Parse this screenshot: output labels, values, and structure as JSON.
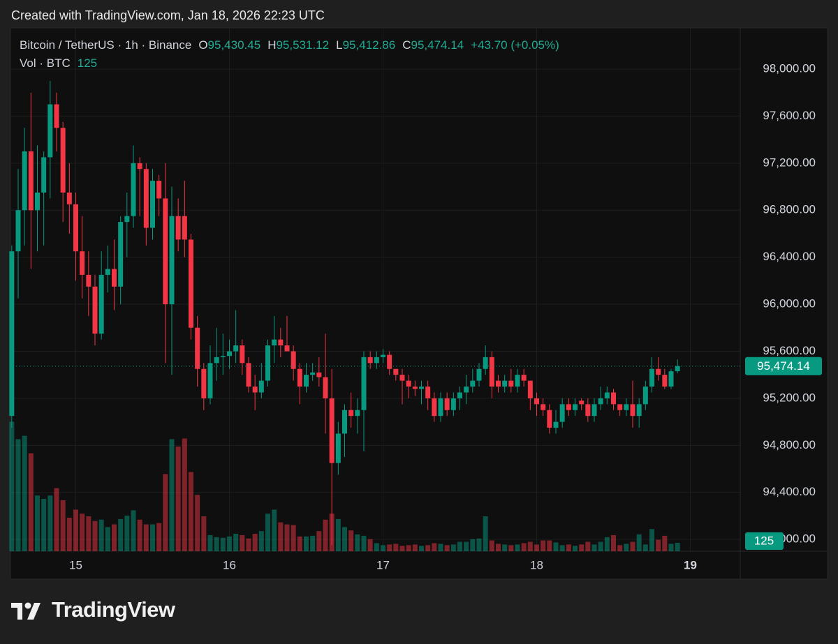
{
  "chart_data": {
    "type": "candlestick",
    "title": "Created with TradingView.com, Jan 18, 2026 22:23 UTC",
    "symbol": "Bitcoin / TetherUS · 1h · Binance",
    "ohlc_legend": [
      {
        "label": "O",
        "value": "95,430.45"
      },
      {
        "label": "H",
        "value": "95,531.12"
      },
      {
        "label": "L",
        "value": "95,412.86"
      },
      {
        "label": "C",
        "value": "95,474.14"
      }
    ],
    "change": "+43.70 (+0.05%)",
    "volume_title": "Vol · BTC",
    "up_color": "#089981",
    "down_color": "#f23645",
    "open": [
      95050,
      96450,
      96800,
      97300,
      96800,
      96950,
      97250,
      97700,
      97500,
      96950,
      96850,
      96450,
      96250,
      96150,
      95750,
      96250,
      96300,
      96150,
      96700,
      96750,
      97200,
      97150,
      96650,
      97050,
      96900,
      96000,
      96750,
      96750,
      96550,
      95800,
      95450,
      95200,
      95500,
      95550,
      95560,
      95600,
      95650,
      95500,
      95300,
      95250,
      95350,
      95650,
      95700,
      95650,
      95600,
      95450,
      95300,
      95400,
      95420,
      95380,
      95200,
      94650,
      94900,
      95100,
      95050,
      95100,
      95550,
      95500,
      95550,
      95570,
      95450,
      95400,
      95350,
      95300,
      95280,
      95300,
      95200,
      95050,
      95200,
      95100,
      95200,
      95250,
      95300,
      95350,
      95450,
      95550,
      95350,
      95300,
      95350,
      95300,
      95400,
      95350,
      95200,
      95150,
      95100,
      94950,
      95000,
      95150,
      95100,
      95180,
      95150,
      95050,
      95150,
      95200,
      95250,
      95150,
      95100,
      95150,
      95050,
      95150,
      95300,
      95450,
      95400,
      95300,
      95430.45
    ],
    "high": [
      96500,
      97150,
      97500,
      97800,
      97350,
      97300,
      97900,
      97800,
      97550,
      97200,
      96950,
      96750,
      96450,
      96250,
      96450,
      96500,
      96550,
      96750,
      96950,
      97350,
      97250,
      97200,
      97150,
      97100,
      97200,
      97000,
      96900,
      97050,
      96600,
      95900,
      95500,
      95650,
      95800,
      95750,
      95700,
      95950,
      95700,
      95550,
      95400,
      95500,
      95700,
      95900,
      95800,
      95900,
      95650,
      95500,
      95500,
      95500,
      95550,
      95750,
      95450,
      95000,
      95150,
      95250,
      95200,
      95600,
      95600,
      95600,
      95620,
      95600,
      95450,
      95450,
      95400,
      95350,
      95350,
      95350,
      95250,
      95250,
      95250,
      95250,
      95300,
      95400,
      95450,
      95500,
      95650,
      95600,
      95400,
      95400,
      95450,
      95450,
      95450,
      95350,
      95250,
      95200,
      95150,
      95100,
      95200,
      95200,
      95200,
      95200,
      95200,
      95200,
      95300,
      95300,
      95280,
      95150,
      95200,
      95350,
      95200,
      95350,
      95550,
      95550,
      95450,
      95450,
      95531.12
    ],
    "low": [
      94950,
      96050,
      96500,
      96300,
      96450,
      96500,
      96900,
      97300,
      96700,
      96600,
      96200,
      96050,
      95900,
      95650,
      95700,
      96100,
      95950,
      96000,
      96400,
      96650,
      96750,
      96500,
      96550,
      96750,
      95500,
      95400,
      96450,
      96400,
      95700,
      95300,
      95100,
      95150,
      95350,
      95400,
      95450,
      95500,
      95400,
      95250,
      95100,
      95200,
      95300,
      95500,
      95550,
      95600,
      95350,
      95150,
      95250,
      95350,
      95300,
      94900,
      93950,
      94550,
      94700,
      94950,
      94900,
      94750,
      95450,
      95450,
      95500,
      95400,
      95350,
      95150,
      95200,
      95220,
      95150,
      95100,
      95000,
      95000,
      95050,
      95050,
      95100,
      95150,
      95250,
      95300,
      95400,
      95200,
      95250,
      95250,
      95250,
      95250,
      95300,
      95100,
      95050,
      95050,
      94900,
      94900,
      94950,
      95050,
      95050,
      95100,
      95000,
      95000,
      95100,
      95150,
      95100,
      95050,
      95050,
      94950,
      94950,
      95100,
      95250,
      95350,
      95280,
      95280,
      95412.86
    ],
    "close": [
      96450,
      96800,
      97300,
      96800,
      96950,
      97250,
      97700,
      97500,
      96950,
      96850,
      96450,
      96250,
      96150,
      95750,
      96250,
      96300,
      96150,
      96700,
      96750,
      97200,
      97150,
      96650,
      97050,
      96900,
      96000,
      96750,
      96550,
      96550,
      95800,
      95450,
      95200,
      95500,
      95550,
      95560,
      95600,
      95650,
      95500,
      95300,
      95250,
      95350,
      95650,
      95700,
      95650,
      95600,
      95450,
      95300,
      95400,
      95420,
      95380,
      95200,
      94650,
      94900,
      95100,
      95050,
      95100,
      95550,
      95500,
      95550,
      95570,
      95450,
      95400,
      95350,
      95300,
      95280,
      95300,
      95200,
      95050,
      95200,
      95100,
      95200,
      95250,
      95300,
      95350,
      95450,
      95550,
      95300,
      95300,
      95350,
      95300,
      95400,
      95350,
      95200,
      95150,
      95100,
      94950,
      95000,
      95150,
      95100,
      95150,
      95150,
      95050,
      95150,
      95200,
      95250,
      95150,
      95100,
      95150,
      95050,
      95150,
      95300,
      95450,
      95400,
      95300,
      95430,
      95474.14
    ],
    "volume": [
      1930,
      1670,
      1720,
      1460,
      830,
      780,
      830,
      940,
      760,
      500,
      620,
      560,
      520,
      450,
      470,
      360,
      400,
      480,
      530,
      610,
      470,
      400,
      400,
      420,
      1150,
      1670,
      1560,
      1680,
      1180,
      840,
      520,
      240,
      210,
      200,
      220,
      260,
      240,
      190,
      260,
      300,
      560,
      620,
      430,
      400,
      390,
      220,
      220,
      230,
      300,
      470,
      560,
      480,
      360,
      310,
      250,
      230,
      180,
      120,
      90,
      100,
      110,
      80,
      90,
      100,
      80,
      90,
      120,
      110,
      90,
      100,
      140,
      140,
      180,
      190,
      520,
      160,
      110,
      100,
      90,
      100,
      120,
      140,
      100,
      160,
      160,
      130,
      90,
      100,
      80,
      100,
      140,
      100,
      140,
      210,
      240,
      90,
      110,
      140,
      250,
      100,
      330,
      170,
      230,
      110,
      125
    ],
    "xlim": [
      -0.2,
      113.8
    ],
    "xticks": [
      {
        "value": 10,
        "label": "15"
      },
      {
        "value": 34,
        "label": "16"
      },
      {
        "value": 58,
        "label": "17"
      },
      {
        "value": 82,
        "label": "18"
      },
      {
        "value": 106,
        "label": "19"
      }
    ],
    "ylim": [
      93900,
      98350
    ],
    "yticks": [
      {
        "value": 94000,
        "label": "94,000.00"
      },
      {
        "value": 94400,
        "label": "94,400.00"
      },
      {
        "value": 94800,
        "label": "94,800.00"
      },
      {
        "value": 95200,
        "label": "95,200.00"
      },
      {
        "value": 95600,
        "label": "95,600.00"
      },
      {
        "value": 96000,
        "label": "96,000.00"
      },
      {
        "value": 96400,
        "label": "96,400.00"
      },
      {
        "value": 96800,
        "label": "96,800.00"
      },
      {
        "value": 97200,
        "label": "97,200.00"
      },
      {
        "value": 97600,
        "label": "97,600.00"
      },
      {
        "value": 98000,
        "label": "98,000.00"
      }
    ],
    "volume_lim": [
      0,
      7800
    ],
    "grid": true
  },
  "footer": {
    "brand": "TradingView"
  }
}
